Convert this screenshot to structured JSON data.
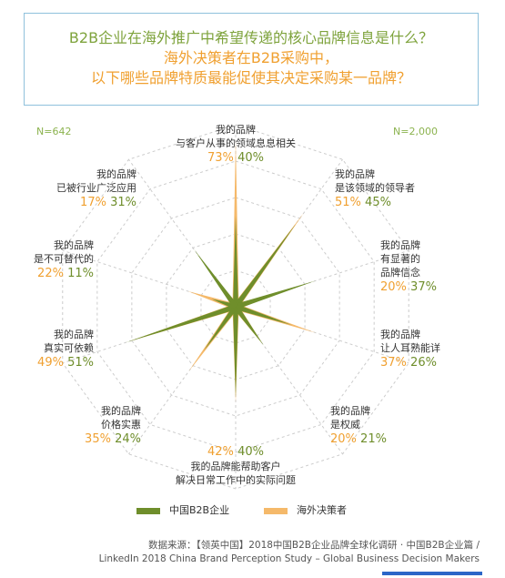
{
  "title": {
    "line1": "B2B企业在海外推广中希望传递的核心品牌信息是什么？",
    "line2": "海外决策者在B2B采购中，",
    "line3": "以下哪些品牌特质最能促使其决定采购某一品牌？"
  },
  "n_left": "N=642",
  "n_right": "N=2,000",
  "legend": {
    "china": "中国B2B企业",
    "overseas": "海外决策者"
  },
  "source": {
    "line1": "数据来源：【领英中国】2018中国B2B企业品牌全球化调研 · 中国B2B企业篇 /",
    "line2": "LinkedIn 2018 China Brand Perception Study – Global Business Decision Makers"
  },
  "colors": {
    "china": "#6f8e2b",
    "overseas": "#f5b96a",
    "grid": "#cccccc"
  },
  "chart_data": {
    "type": "radar",
    "r_max": 80,
    "series": [
      {
        "name": "中国B2B企业",
        "color": "#6f8e2b"
      },
      {
        "name": "海外决策者",
        "color": "#f5b96a"
      }
    ],
    "categories": [
      {
        "lines": [
          "我的品牌",
          "与客户从事的领域息息相关"
        ],
        "v1": "73%",
        "v2": "40%",
        "overseas": 73,
        "china": 40
      },
      {
        "lines": [
          "我的品牌",
          "是该领域的领导者"
        ],
        "v1": "51%",
        "v2": "45%",
        "overseas": 51,
        "china": 45
      },
      {
        "lines": [
          "我的品牌",
          "有显著的",
          "品牌信念"
        ],
        "v1": "20%",
        "v2": "37%",
        "overseas": 20,
        "china": 37
      },
      {
        "lines": [
          "我的品牌",
          "让人耳熟能详"
        ],
        "v1": "37%",
        "v2": "26%",
        "overseas": 37,
        "china": 26
      },
      {
        "lines": [
          "我的品牌",
          "是权威"
        ],
        "v1": "20%",
        "v2": "21%",
        "overseas": 20,
        "china": 21
      },
      {
        "lines": [
          "我的品牌能帮助客户",
          "解决日常工作中的实际问题"
        ],
        "v1": "42%",
        "v2": "40%",
        "overseas": 42,
        "china": 40
      },
      {
        "lines": [
          "我的品牌",
          "价格实惠"
        ],
        "v1": "35%",
        "v2": "24%",
        "overseas": 35,
        "china": 24
      },
      {
        "lines": [
          "我的品牌",
          "真实可依赖"
        ],
        "v1": "49%",
        "v2": "51%",
        "overseas": 49,
        "china": 51
      },
      {
        "lines": [
          "我的品牌",
          "是不可替代的"
        ],
        "v1": "22%",
        "v2": "11%",
        "overseas": 22,
        "china": 11
      },
      {
        "lines": [
          "我的品牌",
          "已被行业广泛应用"
        ],
        "v1": "17%",
        "v2": "31%",
        "overseas": 17,
        "china": 31
      }
    ]
  }
}
